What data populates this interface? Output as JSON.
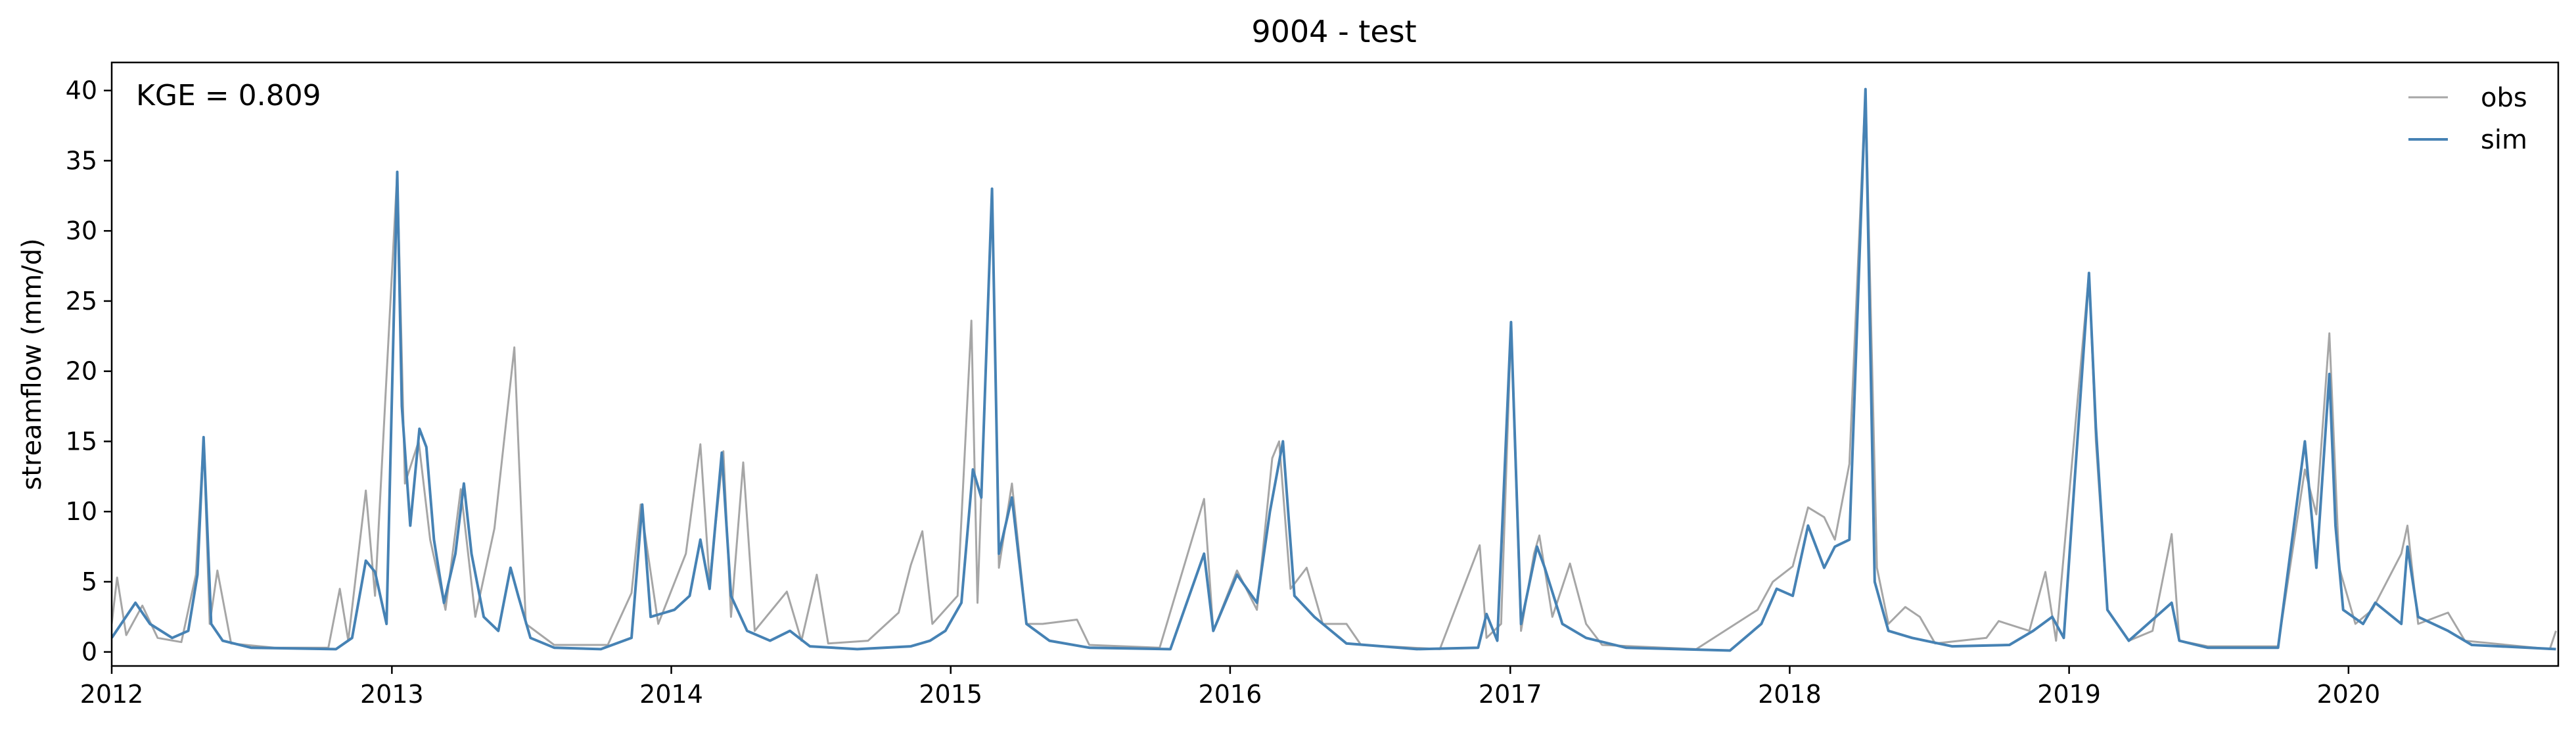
{
  "chart_data": {
    "type": "line",
    "title": "9004 - test",
    "xlabel": "",
    "ylabel": "streamflow (mm/d)",
    "annotation": "KGE = 0.809",
    "legend_position": "top-right",
    "grid": false,
    "xlim": [
      "2012-01-01",
      "2020-10-01"
    ],
    "ylim": [
      -1,
      42
    ],
    "x_ticks": [
      "2012",
      "2013",
      "2014",
      "2015",
      "2016",
      "2017",
      "2018",
      "2019",
      "2020"
    ],
    "y_ticks": [
      0,
      5,
      10,
      15,
      20,
      25,
      30,
      35,
      40
    ],
    "x_tick_dates": [
      "2012-01-01",
      "2013-01-01",
      "2014-01-01",
      "2015-01-01",
      "2016-01-01",
      "2017-01-01",
      "2018-01-01",
      "2019-01-01",
      "2020-01-01"
    ],
    "series": [
      {
        "name": "obs",
        "color": "#a6a6a6",
        "points": [
          [
            "2012-01-01",
            2.0
          ],
          [
            "2012-01-08",
            5.3
          ],
          [
            "2012-01-20",
            1.2
          ],
          [
            "2012-02-10",
            3.3
          ],
          [
            "2012-03-01",
            1.0
          ],
          [
            "2012-04-01",
            0.7
          ],
          [
            "2012-04-20",
            5.5
          ],
          [
            "2012-04-30",
            15.2
          ],
          [
            "2012-05-08",
            2.0
          ],
          [
            "2012-05-18",
            5.8
          ],
          [
            "2012-06-05",
            0.6
          ],
          [
            "2012-08-01",
            0.3
          ],
          [
            "2012-10-10",
            0.3
          ],
          [
            "2012-10-25",
            4.5
          ],
          [
            "2012-11-05",
            0.8
          ],
          [
            "2012-11-28",
            11.5
          ],
          [
            "2012-12-10",
            4.0
          ],
          [
            "2013-01-08",
            34.2
          ],
          [
            "2013-01-18",
            12.0
          ],
          [
            "2013-02-05",
            15.0
          ],
          [
            "2013-02-20",
            8.0
          ],
          [
            "2013-03-12",
            3.0
          ],
          [
            "2013-04-01",
            11.6
          ],
          [
            "2013-04-20",
            2.5
          ],
          [
            "2013-05-15",
            8.8
          ],
          [
            "2013-06-10",
            21.7
          ],
          [
            "2013-06-25",
            2.0
          ],
          [
            "2013-08-01",
            0.5
          ],
          [
            "2013-10-10",
            0.5
          ],
          [
            "2013-11-10",
            4.2
          ],
          [
            "2013-11-22",
            10.5
          ],
          [
            "2013-12-15",
            2.0
          ],
          [
            "2014-01-20",
            7.0
          ],
          [
            "2014-02-08",
            14.8
          ],
          [
            "2014-02-20",
            5.0
          ],
          [
            "2014-03-10",
            14.3
          ],
          [
            "2014-03-20",
            2.5
          ],
          [
            "2014-04-05",
            13.5
          ],
          [
            "2014-04-20",
            1.5
          ],
          [
            "2014-06-01",
            4.3
          ],
          [
            "2014-06-20",
            0.8
          ],
          [
            "2014-07-10",
            5.5
          ],
          [
            "2014-07-25",
            0.6
          ],
          [
            "2014-09-15",
            0.8
          ],
          [
            "2014-10-25",
            2.8
          ],
          [
            "2014-11-10",
            6.2
          ],
          [
            "2014-11-25",
            8.6
          ],
          [
            "2014-12-08",
            2.0
          ],
          [
            "2015-01-10",
            4.0
          ],
          [
            "2015-01-28",
            23.6
          ],
          [
            "2015-02-05",
            3.5
          ],
          [
            "2015-02-24",
            33.0
          ],
          [
            "2015-03-05",
            6.0
          ],
          [
            "2015-03-22",
            12.0
          ],
          [
            "2015-04-10",
            2.0
          ],
          [
            "2015-05-01",
            2.0
          ],
          [
            "2015-06-15",
            2.3
          ],
          [
            "2015-07-01",
            0.5
          ],
          [
            "2015-10-01",
            0.3
          ],
          [
            "2015-11-28",
            10.9
          ],
          [
            "2015-12-10",
            1.5
          ],
          [
            "2016-01-10",
            5.8
          ],
          [
            "2016-02-05",
            3.0
          ],
          [
            "2016-02-25",
            13.8
          ],
          [
            "2016-03-05",
            15.0
          ],
          [
            "2016-03-20",
            4.5
          ],
          [
            "2016-04-10",
            6.0
          ],
          [
            "2016-05-01",
            2.0
          ],
          [
            "2016-06-01",
            2.0
          ],
          [
            "2016-06-20",
            0.5
          ],
          [
            "2016-10-01",
            0.2
          ],
          [
            "2016-11-22",
            7.6
          ],
          [
            "2016-12-01",
            1.0
          ],
          [
            "2016-12-20",
            2.0
          ],
          [
            "2017-01-02",
            23.0
          ],
          [
            "2017-01-15",
            1.5
          ],
          [
            "2017-02-01",
            7.0
          ],
          [
            "2017-02-08",
            8.3
          ],
          [
            "2017-02-25",
            2.5
          ],
          [
            "2017-03-20",
            6.3
          ],
          [
            "2017-04-10",
            2.0
          ],
          [
            "2017-05-01",
            0.5
          ],
          [
            "2017-09-01",
            0.2
          ],
          [
            "2017-11-20",
            3.0
          ],
          [
            "2017-12-10",
            5.0
          ],
          [
            "2018-01-05",
            6.1
          ],
          [
            "2018-01-25",
            10.3
          ],
          [
            "2018-02-15",
            9.6
          ],
          [
            "2018-03-01",
            8.0
          ],
          [
            "2018-03-20",
            13.4
          ],
          [
            "2018-04-10",
            40.1
          ],
          [
            "2018-04-25",
            6.0
          ],
          [
            "2018-05-10",
            2.0
          ],
          [
            "2018-06-01",
            3.2
          ],
          [
            "2018-06-20",
            2.5
          ],
          [
            "2018-07-10",
            0.6
          ],
          [
            "2018-09-15",
            1.0
          ],
          [
            "2018-10-01",
            2.2
          ],
          [
            "2018-11-10",
            1.5
          ],
          [
            "2018-12-01",
            5.7
          ],
          [
            "2018-12-15",
            0.8
          ],
          [
            "2019-01-27",
            27.0
          ],
          [
            "2019-02-05",
            15.0
          ],
          [
            "2019-02-20",
            3.0
          ],
          [
            "2019-03-20",
            0.8
          ],
          [
            "2019-04-20",
            1.5
          ],
          [
            "2019-05-15",
            8.4
          ],
          [
            "2019-05-25",
            0.8
          ],
          [
            "2019-07-01",
            0.4
          ],
          [
            "2019-10-01",
            0.4
          ],
          [
            "2019-11-05",
            13.0
          ],
          [
            "2019-11-20",
            9.8
          ],
          [
            "2019-12-07",
            22.7
          ],
          [
            "2019-12-20",
            6.0
          ],
          [
            "2020-01-10",
            2.0
          ],
          [
            "2020-02-01",
            3.0
          ],
          [
            "2020-03-10",
            7.0
          ],
          [
            "2020-03-18",
            9.0
          ],
          [
            "2020-04-01",
            2.0
          ],
          [
            "2020-05-10",
            2.8
          ],
          [
            "2020-06-01",
            0.8
          ],
          [
            "2020-09-20",
            0.2
          ],
          [
            "2020-09-28",
            1.5
          ]
        ]
      },
      {
        "name": "sim",
        "color": "#4682b4",
        "points": [
          [
            "2012-01-01",
            1.0
          ],
          [
            "2012-02-01",
            3.5
          ],
          [
            "2012-02-20",
            2.0
          ],
          [
            "2012-03-20",
            1.0
          ],
          [
            "2012-04-10",
            1.5
          ],
          [
            "2012-04-22",
            5.5
          ],
          [
            "2012-04-30",
            15.3
          ],
          [
            "2012-05-10",
            2.0
          ],
          [
            "2012-05-25",
            0.8
          ],
          [
            "2012-07-01",
            0.3
          ],
          [
            "2012-10-20",
            0.2
          ],
          [
            "2012-11-10",
            1.0
          ],
          [
            "2012-11-28",
            6.5
          ],
          [
            "2012-12-10",
            5.7
          ],
          [
            "2012-12-25",
            2.0
          ],
          [
            "2013-01-08",
            34.2
          ],
          [
            "2013-01-14",
            17.5
          ],
          [
            "2013-01-25",
            9.0
          ],
          [
            "2013-02-06",
            15.9
          ],
          [
            "2013-02-15",
            14.6
          ],
          [
            "2013-02-25",
            8.0
          ],
          [
            "2013-03-10",
            3.5
          ],
          [
            "2013-03-25",
            7.0
          ],
          [
            "2013-04-05",
            12.0
          ],
          [
            "2013-04-15",
            7.0
          ],
          [
            "2013-05-01",
            2.5
          ],
          [
            "2013-05-20",
            1.5
          ],
          [
            "2013-06-05",
            6.0
          ],
          [
            "2013-06-15",
            4.0
          ],
          [
            "2013-07-01",
            1.0
          ],
          [
            "2013-08-01",
            0.3
          ],
          [
            "2013-10-01",
            0.2
          ],
          [
            "2013-11-10",
            1.0
          ],
          [
            "2013-11-24",
            10.5
          ],
          [
            "2013-12-05",
            2.5
          ],
          [
            "2014-01-05",
            3.0
          ],
          [
            "2014-01-25",
            4.0
          ],
          [
            "2014-02-08",
            8.0
          ],
          [
            "2014-02-20",
            4.5
          ],
          [
            "2014-03-08",
            14.2
          ],
          [
            "2014-03-20",
            4.0
          ],
          [
            "2014-04-10",
            1.5
          ],
          [
            "2014-05-10",
            0.8
          ],
          [
            "2014-06-05",
            1.5
          ],
          [
            "2014-07-01",
            0.4
          ],
          [
            "2014-09-01",
            0.2
          ],
          [
            "2014-11-10",
            0.4
          ],
          [
            "2014-12-05",
            0.8
          ],
          [
            "2014-12-25",
            1.5
          ],
          [
            "2015-01-15",
            3.5
          ],
          [
            "2015-01-30",
            13.0
          ],
          [
            "2015-02-10",
            11.0
          ],
          [
            "2015-02-24",
            33.0
          ],
          [
            "2015-03-05",
            7.0
          ],
          [
            "2015-03-22",
            11.0
          ],
          [
            "2015-04-10",
            2.0
          ],
          [
            "2015-05-10",
            0.8
          ],
          [
            "2015-07-01",
            0.3
          ],
          [
            "2015-10-15",
            0.2
          ],
          [
            "2015-11-28",
            7.0
          ],
          [
            "2015-12-10",
            1.5
          ],
          [
            "2016-01-10",
            5.5
          ],
          [
            "2016-02-05",
            3.5
          ],
          [
            "2016-02-22",
            10.0
          ],
          [
            "2016-03-10",
            15.0
          ],
          [
            "2016-03-25",
            4.0
          ],
          [
            "2016-04-20",
            2.5
          ],
          [
            "2016-06-01",
            0.6
          ],
          [
            "2016-09-01",
            0.2
          ],
          [
            "2016-11-20",
            0.3
          ],
          [
            "2016-12-01",
            2.7
          ],
          [
            "2016-12-15",
            0.8
          ],
          [
            "2017-01-02",
            23.5
          ],
          [
            "2017-01-15",
            2.0
          ],
          [
            "2017-02-05",
            7.5
          ],
          [
            "2017-02-15",
            6.0
          ],
          [
            "2017-03-10",
            2.0
          ],
          [
            "2017-04-10",
            1.0
          ],
          [
            "2017-06-01",
            0.3
          ],
          [
            "2017-10-15",
            0.1
          ],
          [
            "2017-11-25",
            2.0
          ],
          [
            "2017-12-15",
            4.5
          ],
          [
            "2018-01-05",
            4.0
          ],
          [
            "2018-01-25",
            9.0
          ],
          [
            "2018-02-15",
            6.0
          ],
          [
            "2018-03-01",
            7.5
          ],
          [
            "2018-03-20",
            8.0
          ],
          [
            "2018-04-10",
            40.1
          ],
          [
            "2018-04-22",
            5.0
          ],
          [
            "2018-05-10",
            1.5
          ],
          [
            "2018-06-10",
            1.0
          ],
          [
            "2018-08-01",
            0.4
          ],
          [
            "2018-10-15",
            0.5
          ],
          [
            "2018-11-15",
            1.5
          ],
          [
            "2018-12-10",
            2.5
          ],
          [
            "2018-12-25",
            1.0
          ],
          [
            "2019-01-27",
            27.0
          ],
          [
            "2019-02-05",
            16.0
          ],
          [
            "2019-02-20",
            3.0
          ],
          [
            "2019-03-20",
            0.8
          ],
          [
            "2019-05-15",
            3.5
          ],
          [
            "2019-05-25",
            0.8
          ],
          [
            "2019-07-01",
            0.3
          ],
          [
            "2019-10-01",
            0.3
          ],
          [
            "2019-11-05",
            15.0
          ],
          [
            "2019-11-20",
            6.0
          ],
          [
            "2019-12-07",
            19.8
          ],
          [
            "2019-12-15",
            9.0
          ],
          [
            "2019-12-25",
            3.0
          ],
          [
            "2020-01-20",
            2.0
          ],
          [
            "2020-02-05",
            3.5
          ],
          [
            "2020-03-10",
            2.0
          ],
          [
            "2020-03-18",
            7.5
          ],
          [
            "2020-04-01",
            2.5
          ],
          [
            "2020-05-10",
            1.5
          ],
          [
            "2020-06-10",
            0.5
          ],
          [
            "2020-09-28",
            0.2
          ]
        ]
      }
    ]
  }
}
